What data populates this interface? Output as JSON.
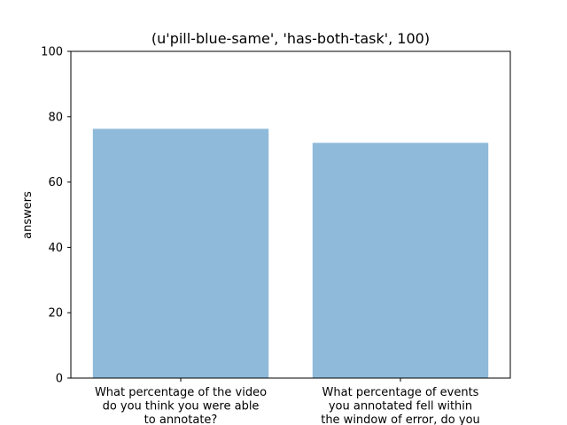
{
  "chart_data": {
    "type": "bar",
    "title": "(u'pill-blue-same', 'has-both-task', 100)",
    "xlabel": "",
    "ylabel": "answers",
    "ylim": [
      0,
      100
    ],
    "yticks": [
      0,
      20,
      40,
      60,
      80,
      100
    ],
    "grid": false,
    "categories": [
      [
        "What percentage of the video",
        "do you think you were able",
        "to annotate?"
      ],
      [
        "What percentage of events",
        "you annotated fell within",
        "the window of error, do you"
      ]
    ],
    "values": [
      76.3,
      72.0
    ],
    "colors": {
      "bar": "#8fbad9",
      "axis": "#000000",
      "background": "#ffffff"
    }
  }
}
